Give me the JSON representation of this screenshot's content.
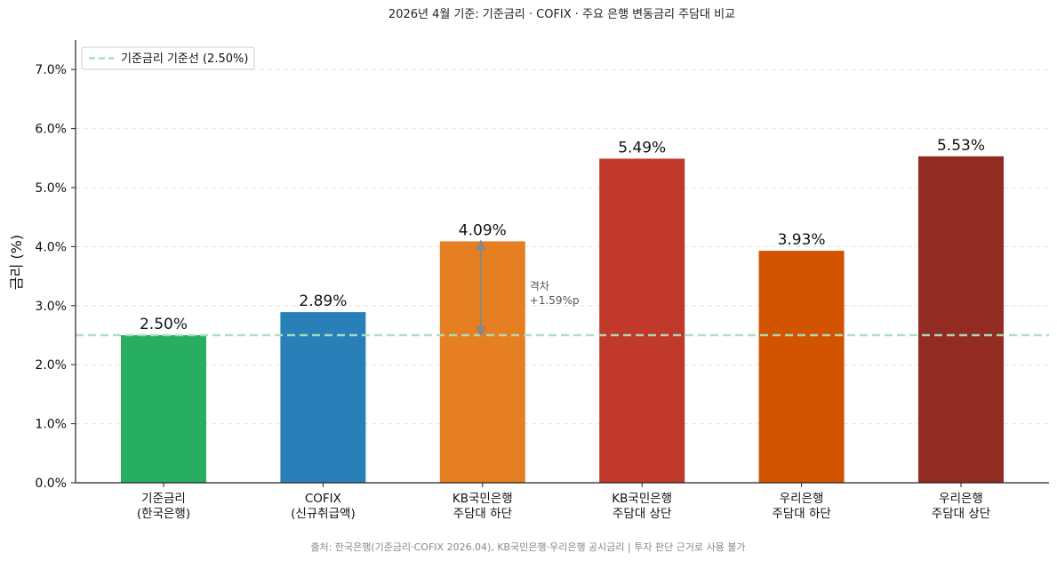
{
  "chart_data": {
    "type": "bar",
    "title": "2026년 4월 기준: 기준금리 · COFIX · 주요 은행 변동금리 주담대 비교",
    "ylabel": "금리 (%)",
    "xlabel": "",
    "ylim": [
      0,
      7.5
    ],
    "yticks": [
      0,
      1,
      2,
      3,
      4,
      5,
      6,
      7
    ],
    "ytick_labels": [
      "0.0%",
      "1.0%",
      "2.0%",
      "3.0%",
      "4.0%",
      "5.0%",
      "6.0%",
      "7.0%"
    ],
    "grid": "horizontal dashed",
    "categories": [
      [
        "기준금리",
        "(한국은행)"
      ],
      [
        "COFIX",
        "(신규취급액)"
      ],
      [
        "KB국민은행",
        "주담대 하단"
      ],
      [
        "KB국민은행",
        "주담대 상단"
      ],
      [
        "우리은행",
        "주담대 하단"
      ],
      [
        "우리은행",
        "주담대 상단"
      ]
    ],
    "values": [
      2.5,
      2.89,
      4.09,
      5.49,
      3.93,
      5.53
    ],
    "value_labels": [
      "2.50%",
      "2.89%",
      "4.09%",
      "5.49%",
      "3.93%",
      "5.53%"
    ],
    "colors": [
      "#27ae60",
      "#2980b9",
      "#e67e22",
      "#c0392b",
      "#d35400",
      "#922b21"
    ],
    "reference_line": {
      "value": 2.5,
      "label": "기준금리 기준선 (2.50%)",
      "color": "#a9dfbf",
      "style": "dashed"
    },
    "legend": {
      "placement": "top-left"
    },
    "annotation": {
      "category_index": 2,
      "from": 2.5,
      "to": 4.09,
      "text_lines": [
        "격차",
        "+1.59%p"
      ],
      "color": "#888888"
    },
    "footnote": "출처: 한국은행(기준금리·COFIX 2026.04), KB국민은행·우리은행 공시금리 | 투자 판단 근거로 사용 불가"
  }
}
